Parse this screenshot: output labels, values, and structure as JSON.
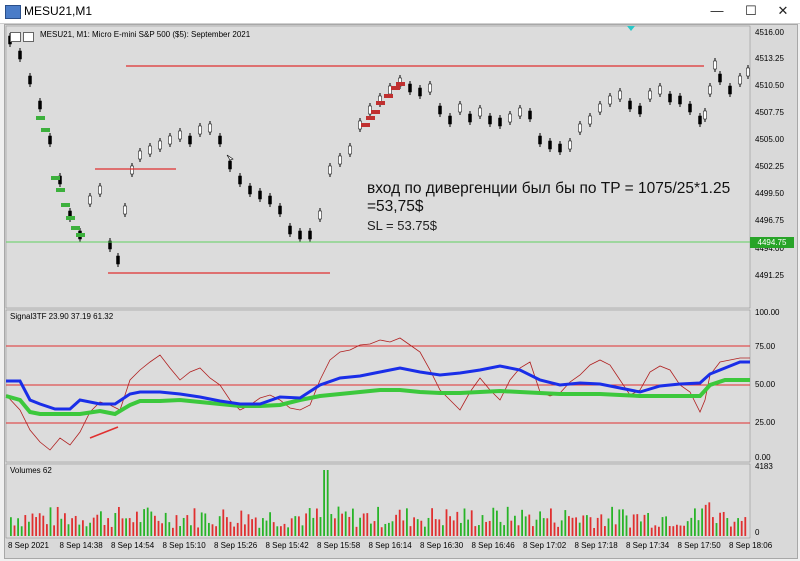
{
  "window": {
    "title": "MESU21,M1",
    "minimize_glyph": "—",
    "maximize_glyph": "☐",
    "close_glyph": "✕"
  },
  "chart": {
    "symbol_desc": "MESU21, M1:  Micro E-mini S&P 500 ($5): September 2021",
    "current_price_tag": "4494.75",
    "price_ticks": [
      "4516.00",
      "4513.25",
      "4510.50",
      "4507.75",
      "4505.00",
      "4502.25",
      "4499.50",
      "4496.75",
      "4494.00",
      "4491.25"
    ],
    "time_ticks": [
      "8 Sep 2021",
      "8 Sep 14:38",
      "8 Sep 14:54",
      "8 Sep 15:10",
      "8 Sep 15:26",
      "8 Sep 15:42",
      "8 Sep 15:58",
      "8 Sep 16:14",
      "8 Sep 16:30",
      "8 Sep 16:46",
      "8 Sep 17:02",
      "8 Sep 17:18",
      "8 Sep 17:34",
      "8 Sep 17:50",
      "8 Sep 18:06"
    ],
    "colors": {
      "bg": "#dcdcdc",
      "up": "#000000",
      "down": "#000000",
      "hline": "#e03030",
      "greenline": "#60d060",
      "bluesignal": "#1a2ee8",
      "greensignal": "#3cc83c",
      "thin": "#b02020",
      "vol_up": "#28b428",
      "vol_down": "#e03030"
    }
  },
  "annotation": {
    "line1": "вход по дивергенции был бы по TP = 1075/25*1.25",
    "line2": "=53,75$",
    "line3": "SL = 53.75$"
  },
  "indicator": {
    "label": "Signal3TF 23.90 37.19 61.32",
    "ticks": [
      "100.00",
      "75.00",
      "50.00",
      "25.00",
      "0.00"
    ]
  },
  "volumes": {
    "label": "Volumes 62",
    "ticks": [
      "4183",
      "0"
    ]
  }
}
